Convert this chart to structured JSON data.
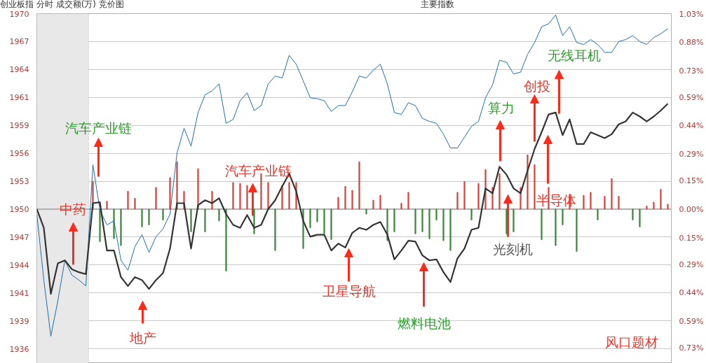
{
  "chart_data": {
    "type": "line",
    "title": "创业板指   分时 成交额(万) 竞价图",
    "categories": [
      null,
      null,
      null,
      null,
      null,
      null,
      null,
      null,
      null,
      null,
      null,
      null,
      null,
      null,
      null,
      null,
      null,
      null,
      null,
      null,
      null,
      null,
      null,
      null,
      null,
      null,
      null,
      null,
      null,
      null,
      null,
      null,
      null,
      null,
      null,
      null,
      null,
      null,
      null,
      null,
      null,
      null,
      null,
      null,
      null,
      null,
      null,
      null,
      null,
      null,
      null,
      null,
      null,
      null,
      null,
      null,
      null,
      null,
      null,
      null,
      null,
      null,
      null,
      null,
      null,
      null,
      null,
      null,
      null,
      null,
      null,
      null,
      null,
      null,
      null,
      null,
      null,
      null,
      null,
      null,
      null,
      null,
      null,
      null,
      null,
      null,
      null,
      null,
      null,
      null,
      null
    ],
    "series": [
      {
        "type": "bar",
        "colors": [
          null,
          null,
          null,
          null,
          null,
          null,
          null,
          null,
          "#e0403c",
          "#3a8a3a",
          "#e0403c",
          "#3a8a3a",
          "#3a8a3a",
          "#e0403c",
          "#e0403c",
          "#3a8a3a",
          "#3a8a3a",
          "#e0403c",
          "#3a8a3a",
          "#e0403c",
          "#e0403c",
          "#e0403c",
          "#3a8a3a",
          "#e0403c",
          "#3a8a3a",
          "#e0403c",
          "#3a8a3a",
          "#3a8a3a",
          "#e0403c",
          "#e0403c",
          "#e0403c",
          "#3a8a3a",
          "#e0403c",
          "#e0403c",
          "#3a8a3a",
          "#e0403c",
          "#e0403c",
          "#e0403c",
          "#3a8a3a",
          "#3a8a3a",
          "#3a8a3a",
          "#3a8a3a",
          "#3a8a3a",
          "#e0403c",
          "#e0403c",
          "#e0403c",
          "#e0403c",
          "#3a8a3a",
          "#e0403c",
          "#e0403c",
          "#3a8a3a",
          "#3a8a3a",
          "#e0403c",
          "#e0403c",
          "#3a8a3a",
          "#3a8a3a",
          "#3a8a3a",
          "#3a8a3a",
          "#3a8a3a",
          "#3a8a3a",
          "#e0403c",
          "#e0403c",
          "#3a8a3a",
          "#e0403c",
          "#e0403c",
          "#e0403c",
          "#e0403c",
          "#3a8a3a",
          "#3a8a3a",
          "#e0403c",
          "#e0403c",
          "#e0403c",
          "#3a8a3a",
          "#e0403c",
          "#3a8a3a",
          "#3a8a3a",
          "#e0403c",
          "#3a8a3a",
          "#e0403c",
          "#e0403c",
          "#3a8a3a",
          "#e0403c",
          "#e0403c",
          "#e0403c",
          null,
          "#3a8a3a",
          "#3a8a3a",
          "#e0403c",
          "#e0403c",
          "#e0403c",
          "#e0403c"
        ],
        "base": [
          null,
          null,
          null,
          null,
          null,
          null,
          null,
          null,
          1950,
          1950,
          1950,
          1950,
          1950,
          1950,
          1950,
          1950,
          1950,
          1950,
          1950,
          1950,
          1950,
          1950,
          1950,
          1950,
          1950,
          1950,
          1950,
          1950,
          1950,
          1950,
          1950,
          1950,
          1950,
          1950,
          1950,
          1950,
          1950,
          1950,
          1950,
          1950,
          1950,
          1950,
          1950,
          1950,
          1950,
          1950,
          1950,
          1950,
          1950,
          1950,
          1950,
          1950,
          1950,
          1950,
          1950,
          1950,
          1950,
          1950,
          1950,
          1950,
          1950,
          1950,
          1950,
          1950,
          1950,
          1950,
          1950,
          1950,
          1950,
          1950,
          1950,
          1950,
          1950,
          1950,
          1950,
          1950,
          1950,
          1950,
          1950,
          1950,
          1950,
          1950,
          1950,
          1950,
          null,
          1950,
          1950,
          1950,
          1950,
          1950,
          1950
        ],
        "values": [
          null,
          null,
          null,
          null,
          null,
          null,
          null,
          null,
          2.8,
          -3.3,
          0.8,
          -3.0,
          -3.7,
          1.8,
          1.1,
          -1.8,
          -1.6,
          2.2,
          -1.1,
          3.2,
          4.8,
          1.8,
          -2.3,
          4.1,
          -2.3,
          1.8,
          -1.2,
          -6.3,
          2.7,
          2.6,
          2.4,
          -2.5,
          3.6,
          2.7,
          -4.2,
          2.4,
          2.7,
          2.7,
          -4.0,
          -1.9,
          -1.3,
          -2.5,
          -3.1,
          1.2,
          2.3,
          1.9,
          4.8,
          -0.5,
          0.9,
          1.4,
          -3.2,
          -2.3,
          0.6,
          1.7,
          -2.5,
          -2.3,
          -3.0,
          -1.1,
          -3.2,
          -4.2,
          1.7,
          2.8,
          -1.1,
          2.6,
          4.0,
          2.2,
          3.6,
          -2.5,
          -2.3,
          2.2,
          5.5,
          4.5,
          -3.1,
          2.2,
          -3.7,
          -1.6,
          1.5,
          -4.3,
          1.4,
          1.7,
          -1.1,
          1.3,
          3.1,
          1.3,
          null,
          -1.1,
          -1.8,
          0.3,
          0.7,
          2.0,
          0.5
        ]
      },
      {
        "color": "#1a6fb5",
        "values": [
          1949.5,
          1942.8,
          1937.1,
          1940.7,
          1944.8,
          1943.3,
          1942.8,
          1942.2,
          1954.5,
          1949.9,
          1948.4,
          1948.8,
          1944.8,
          1943.8,
          1946.2,
          1947.4,
          1945.6,
          1947.2,
          1948.0,
          1949.5,
          1955.7,
          1958.2,
          1956.4,
          1959.8,
          1961.6,
          1962.0,
          1962.7,
          1958.7,
          1959.1,
          1961.0,
          1961.8,
          1960.0,
          1960.5,
          1962.7,
          1963.5,
          1963.3,
          1965.6,
          1964.7,
          1963.0,
          1961.3,
          1961.2,
          1961.0,
          1959.9,
          1960.5,
          1960.5,
          1961.9,
          1963.5,
          1963.3,
          1964.1,
          1964.7,
          1962.7,
          1959.8,
          1959.6,
          1960.8,
          1960.5,
          1959.2,
          1958.9,
          1958.7,
          1957.6,
          1956.2,
          1956.2,
          1957.3,
          1958.4,
          1958.9,
          1961.3,
          1962.6,
          1965.1,
          1964.9,
          1963.7,
          1963.9,
          1965.7,
          1966.9,
          1968.5,
          1968.8,
          1969.7,
          1967.6,
          1968.5,
          1966.9,
          1966.7,
          1967.2,
          1966.7,
          1965.9,
          1965.9,
          1967.0,
          1967.2,
          1967.6,
          1967.0,
          1966.7,
          1967.4,
          1967.8,
          1968.3
        ]
      },
      {
        "color": "#333333",
        "values": [
          1950.0,
          1948.1,
          1941.4,
          1944.5,
          1944.8,
          1943.9,
          1943.6,
          1943.4,
          1950.6,
          1950.7,
          1945.8,
          1945.8,
          1943.1,
          1942.2,
          1943.1,
          1942.8,
          1941.9,
          1942.8,
          1943.5,
          1946.0,
          1950.6,
          1950.6,
          1946.0,
          1950.4,
          1950.9,
          1950.6,
          1951.1,
          1949.5,
          1948.4,
          1948.1,
          1949.4,
          1948.1,
          1948.4,
          1950.0,
          1950.9,
          1952.3,
          1953.6,
          1951.8,
          1948.8,
          1947.2,
          1947.4,
          1947.4,
          1945.8,
          1946.5,
          1946.1,
          1947.6,
          1948.1,
          1947.9,
          1948.4,
          1948.7,
          1947.4,
          1944.9,
          1945.8,
          1946.8,
          1946.7,
          1945.3,
          1944.8,
          1944.9,
          1943.6,
          1942.6,
          1945.0,
          1946.0,
          1947.9,
          1948.1,
          1952.1,
          1951.6,
          1954.3,
          1953.5,
          1952.1,
          1951.6,
          1953.9,
          1956.1,
          1957.8,
          1959.6,
          1959.8,
          1957.5,
          1959.1,
          1956.6,
          1956.6,
          1957.8,
          1957.5,
          1957.2,
          1957.6,
          1958.6,
          1958.9,
          1959.8,
          1959.4,
          1958.9,
          1959.4,
          1960.0,
          1960.7
        ]
      }
    ],
    "ylim": [
      1934.35,
      1969.83
    ],
    "yticks": [
      {
        "value": 1969.83,
        "label": "1970"
      },
      1967,
      {
        "value": 1964.17,
        "label": "1964"
      },
      {
        "value": 1961.33,
        "label": "1961"
      },
      {
        "value": 1958.5,
        "label": "1959"
      },
      {
        "value": 1955.67,
        "label": "1956"
      },
      {
        "value": 1952.83,
        "label": "1953"
      },
      1950,
      {
        "value": 1947.17,
        "label": "1947"
      },
      {
        "value": 1944.33,
        "label": "1944"
      },
      {
        "value": 1941.5,
        "label": "1941"
      },
      {
        "value": 1938.67,
        "label": "1939"
      },
      {
        "value": 1935.83,
        "label": "1936"
      }
    ],
    "y2lim": [
      -0.81,
      1.03
    ],
    "y2ticks": [
      {
        "value": 1.03,
        "label": "1.03%"
      },
      {
        "value": 0.88,
        "label": "0.88%"
      },
      {
        "value": 0.73,
        "label": "0.73%"
      },
      {
        "value": 0.59,
        "label": "0.59%"
      },
      {
        "value": 0.44,
        "label": "0.44%"
      },
      {
        "value": 0.29,
        "label": "0.29%"
      },
      {
        "value": 0.15,
        "label": "0.15%"
      },
      {
        "value": 0,
        "label": "0.00%"
      },
      {
        "value": -0.15,
        "label": "0.15%"
      },
      {
        "value": -0.29,
        "label": "0.29%"
      },
      {
        "value": -0.44,
        "label": "0.44%"
      },
      {
        "value": -0.59,
        "label": "0.59%"
      },
      {
        "value": -0.73,
        "label": "0.73%"
      }
    ],
    "tick_labels": "y",
    "grid": "y",
    "ref_lines": [
      {
        "axis": "y",
        "value": 1950,
        "color": "#b0b0b0"
      }
    ],
    "annotations": [
      "汽车产业链",
      "中药",
      "地产",
      "汽车产业链",
      "卫星导航",
      "燃料电池",
      "光刻机",
      "算力",
      "创投",
      "半导体",
      "无线耳机",
      "风口题材",
      "主要指数"
    ]
  }
}
